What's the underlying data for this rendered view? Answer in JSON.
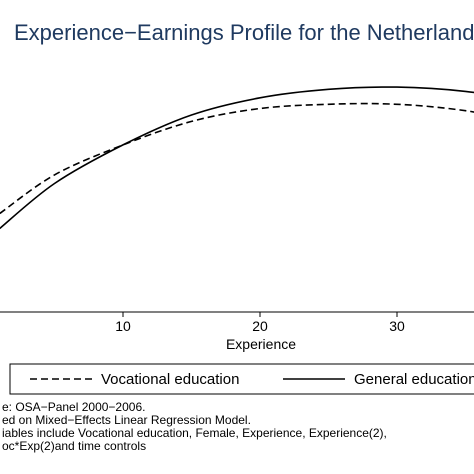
{
  "chart_data": {
    "type": "line",
    "title": "Experience−Earnings Profile for the Netherlands",
    "xlabel": "Experience",
    "ylabel": "",
    "xlim": [
      1,
      40
    ],
    "x_ticks": [
      "10",
      "20",
      "30"
    ],
    "grid": false,
    "legend_position": "bottom",
    "series": [
      {
        "name": "Vocational education",
        "style": "dashed",
        "x": [
          1,
          5,
          10,
          15,
          20,
          25,
          30,
          35,
          40
        ],
        "y": [
          0.58,
          0.67,
          0.74,
          0.795,
          0.825,
          0.835,
          0.835,
          0.82,
          0.79
        ]
      },
      {
        "name": "General education",
        "style": "solid",
        "x": [
          1,
          5,
          10,
          15,
          20,
          25,
          30,
          35,
          40
        ],
        "y": [
          0.545,
          0.65,
          0.74,
          0.81,
          0.85,
          0.87,
          0.875,
          0.865,
          0.84
        ]
      }
    ],
    "notes": [
      "e: OSA−Panel 2000−2006.",
      "ed on Mixed−Effects Linear Regression Model.",
      "iables include Vocational education, Female, Experience, Experience(2),",
      "oc*Exp(2)and time controls"
    ]
  },
  "colors": {
    "title": "#1f3a60",
    "line": "#000000",
    "background": "#ffffff"
  }
}
